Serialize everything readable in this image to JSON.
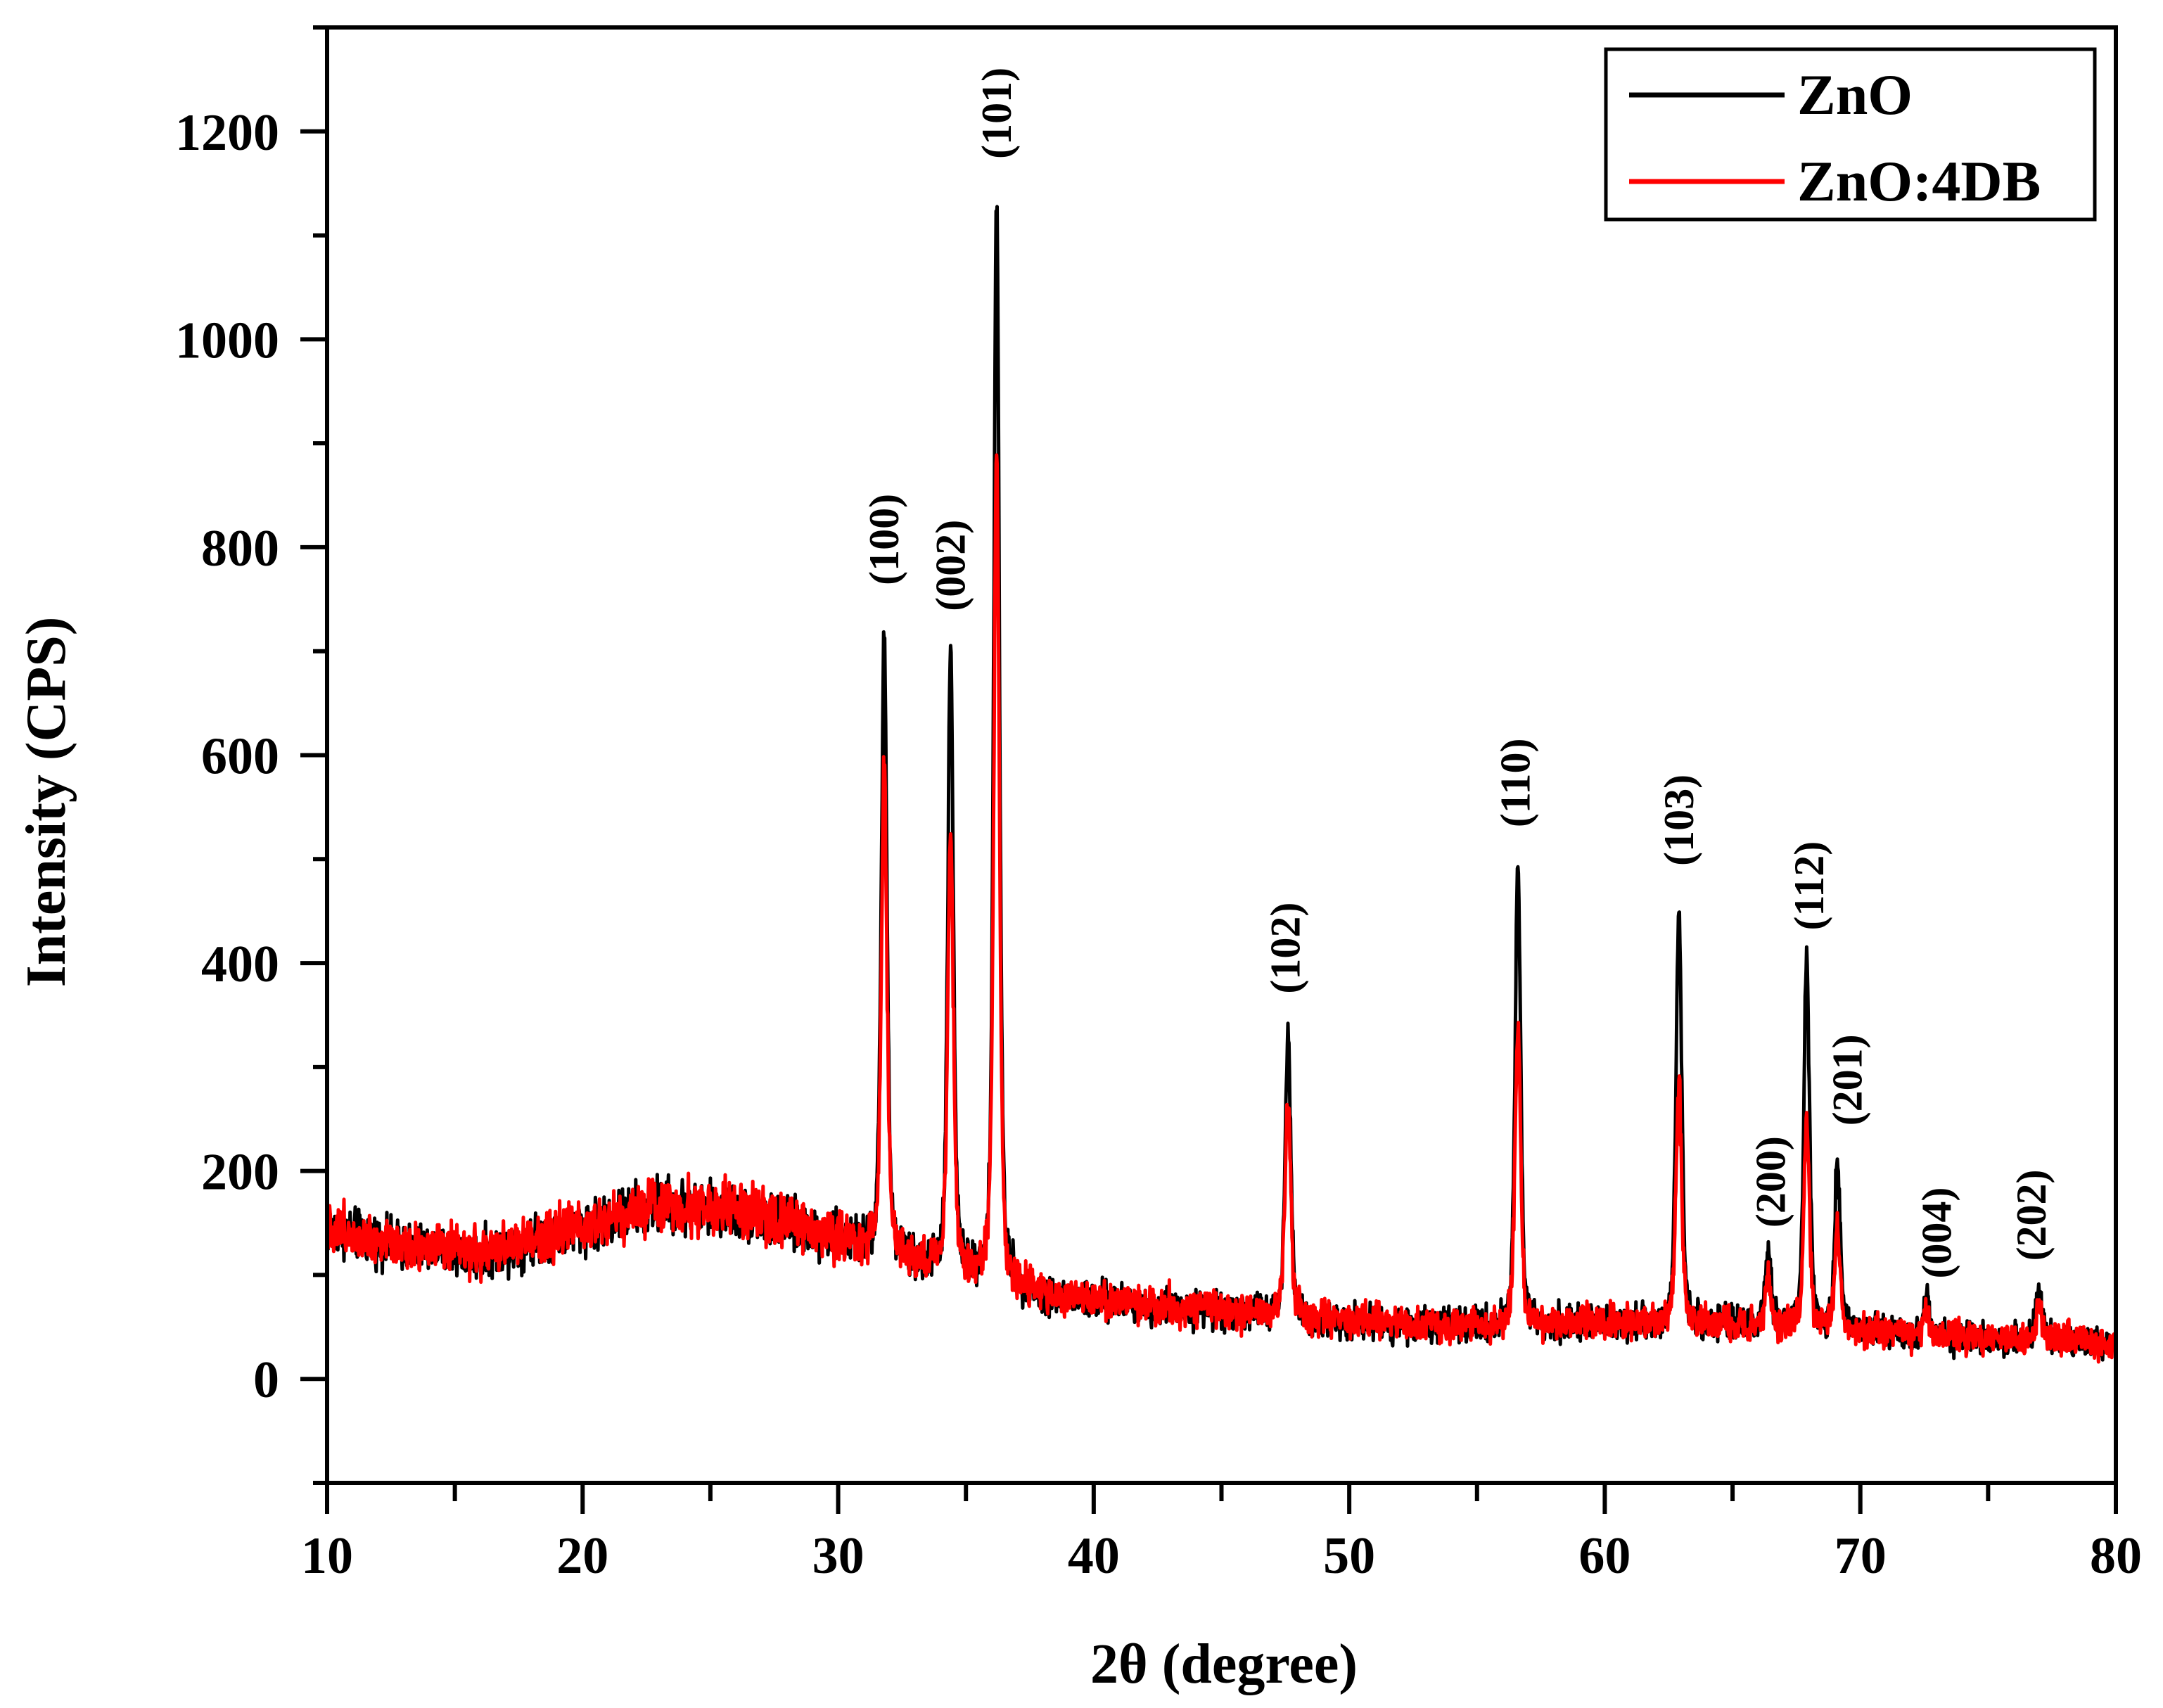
{
  "chart_data": {
    "type": "line",
    "title": "",
    "xlabel": "2θ (degree)",
    "ylabel": "Intensity (CPS)",
    "xlim": [
      10,
      80
    ],
    "ylim": [
      -100,
      1300
    ],
    "x_major_ticks": [
      10,
      20,
      30,
      40,
      50,
      60,
      70,
      80
    ],
    "x_minor_ticks": [
      15,
      25,
      35,
      45,
      55,
      65,
      75
    ],
    "y_major_ticks": [
      0,
      200,
      400,
      600,
      800,
      1000,
      1200
    ],
    "y_minor_ticks": [
      -100,
      100,
      300,
      500,
      700,
      900,
      1100,
      1300
    ],
    "grid": false,
    "legend_position": "upper right",
    "series": [
      {
        "name": "ZnO",
        "color": "#000000",
        "background": [
          [
            10,
            145
          ],
          [
            13,
            128
          ],
          [
            16,
            118
          ],
          [
            19,
            140
          ],
          [
            23,
            168
          ],
          [
            26,
            160
          ],
          [
            30,
            135
          ],
          [
            33,
            110
          ],
          [
            36,
            95
          ],
          [
            38,
            79
          ],
          [
            42,
            70
          ],
          [
            46,
            64
          ],
          [
            50,
            55
          ],
          [
            54,
            50
          ],
          [
            58,
            52
          ],
          [
            62,
            53
          ],
          [
            66,
            50
          ],
          [
            70,
            45
          ],
          [
            74,
            40
          ],
          [
            78,
            36
          ],
          [
            80,
            33
          ]
        ],
        "peaks": [
          {
            "x": 31.8,
            "y": 722
          },
          {
            "x": 34.4,
            "y": 695
          },
          {
            "x": 36.2,
            "y": 1137
          },
          {
            "x": 47.6,
            "y": 329
          },
          {
            "x": 56.6,
            "y": 496
          },
          {
            "x": 62.9,
            "y": 455
          },
          {
            "x": 66.4,
            "y": 123
          },
          {
            "x": 67.9,
            "y": 407
          },
          {
            "x": 69.1,
            "y": 210
          },
          {
            "x": 72.6,
            "y": 77
          },
          {
            "x": 77.0,
            "y": 89
          }
        ]
      },
      {
        "name": "ZnO:4DB",
        "color": "#ff0000",
        "background": [
          [
            10,
            145
          ],
          [
            13,
            130
          ],
          [
            16,
            120
          ],
          [
            19,
            142
          ],
          [
            23,
            169
          ],
          [
            26,
            162
          ],
          [
            30,
            137
          ],
          [
            33,
            112
          ],
          [
            36,
            97
          ],
          [
            38,
            80
          ],
          [
            42,
            71
          ],
          [
            46,
            65
          ],
          [
            50,
            56
          ],
          [
            54,
            51
          ],
          [
            58,
            53
          ],
          [
            62,
            54
          ],
          [
            66,
            51
          ],
          [
            70,
            46
          ],
          [
            74,
            41
          ],
          [
            78,
            37
          ],
          [
            80,
            34
          ]
        ],
        "peaks": [
          {
            "x": 31.8,
            "y": 588
          },
          {
            "x": 34.4,
            "y": 529
          },
          {
            "x": 36.2,
            "y": 885
          },
          {
            "x": 47.6,
            "y": 268
          },
          {
            "x": 56.6,
            "y": 338
          },
          {
            "x": 62.9,
            "y": 280
          },
          {
            "x": 66.4,
            "y": 95
          },
          {
            "x": 67.9,
            "y": 247
          },
          {
            "x": 69.1,
            "y": 142
          },
          {
            "x": 72.6,
            "y": 66
          },
          {
            "x": 77.0,
            "y": 73
          }
        ]
      }
    ],
    "annotations": [
      {
        "text": "(100)",
        "x": 31.8,
        "label_center_y": 722,
        "label_bottom_value": 750
      },
      {
        "text": "(002)",
        "x": 34.4,
        "label_bottom_value": 725
      },
      {
        "text": "(101)",
        "x": 36.2,
        "label_bottom_value": 1160
      },
      {
        "text": "(102)",
        "x": 47.5,
        "label_bottom_value": 357
      },
      {
        "text": "(110)",
        "x": 56.5,
        "label_bottom_value": 517
      },
      {
        "text": "(103)",
        "x": 62.9,
        "label_bottom_value": 480
      },
      {
        "text": "(200)",
        "x": 66.5,
        "label_bottom_value": 132
      },
      {
        "text": "(112)",
        "x": 68.0,
        "label_bottom_value": 418
      },
      {
        "text": "(201)",
        "x": 69.5,
        "label_bottom_value": 230
      },
      {
        "text": "(004)",
        "x": 73.0,
        "label_bottom_value": 83
      },
      {
        "text": "(202)",
        "x": 76.7,
        "label_bottom_value": 100
      }
    ]
  },
  "legend": {
    "items": [
      {
        "label": "ZnO",
        "color": "#000000"
      },
      {
        "label": "ZnO:4DB",
        "color": "#ff0000"
      }
    ]
  },
  "axes": {
    "x_title": "2θ (degree)",
    "y_title": "Intensity (CPS)"
  }
}
